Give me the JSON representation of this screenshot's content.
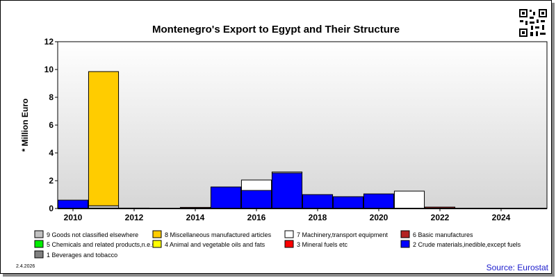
{
  "chart_data": {
    "type": "bar",
    "stacked": true,
    "title": "Montenegro's Export to Egypt and Their Structure",
    "ylabel": "* Million Euro",
    "ylim": [
      0,
      12
    ],
    "yticks": [
      0,
      2,
      4,
      6,
      8,
      10,
      12
    ],
    "xlim": [
      2009.5,
      2025.5
    ],
    "xticks": [
      2010,
      2012,
      2014,
      2016,
      2018,
      2020,
      2022,
      2024
    ],
    "grid": false,
    "legend_position": "bottom",
    "series": [
      {
        "name": "2 Crude materials,inedible,except fuels",
        "color": "#0000ff",
        "points": [
          [
            2010,
            0.6
          ],
          [
            2015,
            1.55
          ],
          [
            2016,
            1.3
          ],
          [
            2017,
            2.55
          ],
          [
            2018,
            1.0
          ],
          [
            2019,
            0.85
          ],
          [
            2020,
            1.05
          ]
        ]
      },
      {
        "name": "9 Goods not classified elsewhere",
        "color": "#c0c0c0",
        "points": [
          [
            2011,
            0.2
          ]
        ]
      },
      {
        "name": "8 Miscellaneous manufactured articles",
        "color": "#ffcc00",
        "points": [
          [
            2011,
            9.65
          ]
        ]
      },
      {
        "name": "7 Machinery,transport equipment",
        "color": "#ffffff",
        "points": [
          [
            2016,
            0.75
          ],
          [
            2017,
            0.08
          ],
          [
            2021,
            1.25
          ]
        ]
      },
      {
        "name": "6 Basic manufactures",
        "color": "#b22222",
        "points": [
          [
            2012,
            0.03
          ],
          [
            2014,
            0.08
          ],
          [
            2022,
            0.1
          ]
        ]
      }
    ],
    "legend": [
      {
        "label": "9 Goods not classified elsewhere",
        "color": "#c0c0c0"
      },
      {
        "label": "8 Miscellaneous manufactured articles",
        "color": "#ffcc00"
      },
      {
        "label": "7 Machinery,transport equipment",
        "color": "#ffffff"
      },
      {
        "label": "6 Basic manufactures",
        "color": "#b22222"
      },
      {
        "label": "5 Chemicals and related products,n.e.s.",
        "color": "#00ee00"
      },
      {
        "label": "4 Animal and vegetable oils and fats",
        "color": "#ffff00"
      },
      {
        "label": "3 Mineral fuels etc",
        "color": "#ff0000"
      },
      {
        "label": "2 Crude materials,inedible,except fuels",
        "color": "#0000ff"
      },
      {
        "label": "1 Beverages and tobacco",
        "color": "#808080"
      }
    ]
  },
  "footer": {
    "date": "2.4.2026",
    "source": "Source: Eurostat"
  }
}
